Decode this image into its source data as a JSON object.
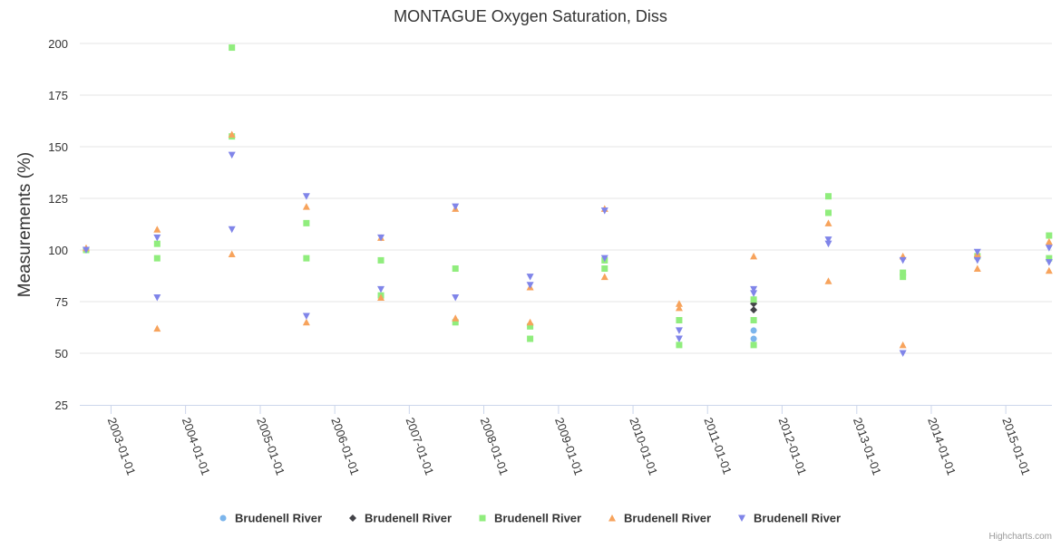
{
  "chart_data": {
    "type": "scatter",
    "title": "MONTAGUE Oxygen Saturation, Diss",
    "xlabel": "",
    "ylabel": "Measurements (%)",
    "x_axis_type": "datetime",
    "xlim": [
      "2002-08-01",
      "2015-08-15"
    ],
    "ylim": [
      25,
      200
    ],
    "y_ticks": [
      25,
      50,
      75,
      100,
      125,
      150,
      175,
      200
    ],
    "x_ticks": [
      "2003-01-01",
      "2004-01-01",
      "2005-01-01",
      "2006-01-01",
      "2007-01-01",
      "2008-01-01",
      "2009-01-01",
      "2010-01-01",
      "2011-01-01",
      "2012-01-01",
      "2013-01-01",
      "2014-01-01",
      "2015-01-01"
    ],
    "grid": "horizontal",
    "legend_position": "bottom-center",
    "series": [
      {
        "name": "Brudenell River",
        "color": "#7cb5ec",
        "marker": "circle",
        "points": [
          {
            "x": "2011-08-15",
            "y": 61
          },
          {
            "x": "2011-08-15",
            "y": 57
          }
        ]
      },
      {
        "name": "Brudenell River",
        "color": "#434348",
        "marker": "diamond",
        "points": [
          {
            "x": "2011-08-15",
            "y": 74
          },
          {
            "x": "2011-08-15",
            "y": 71
          }
        ]
      },
      {
        "name": "Brudenell River",
        "color": "#90ed7d",
        "marker": "square",
        "points": [
          {
            "x": "2002-09-01",
            "y": 100
          },
          {
            "x": "2003-08-15",
            "y": 103
          },
          {
            "x": "2003-08-15",
            "y": 96
          },
          {
            "x": "2004-08-15",
            "y": 198
          },
          {
            "x": "2004-08-15",
            "y": 155
          },
          {
            "x": "2005-08-15",
            "y": 113
          },
          {
            "x": "2005-08-15",
            "y": 96
          },
          {
            "x": "2006-08-15",
            "y": 95
          },
          {
            "x": "2006-08-15",
            "y": 78
          },
          {
            "x": "2007-08-15",
            "y": 91
          },
          {
            "x": "2007-08-15",
            "y": 65
          },
          {
            "x": "2008-08-15",
            "y": 63
          },
          {
            "x": "2008-08-15",
            "y": 57
          },
          {
            "x": "2009-08-15",
            "y": 95
          },
          {
            "x": "2009-08-15",
            "y": 91
          },
          {
            "x": "2010-08-15",
            "y": 66
          },
          {
            "x": "2010-08-15",
            "y": 54
          },
          {
            "x": "2011-08-15",
            "y": 76
          },
          {
            "x": "2011-08-15",
            "y": 66
          },
          {
            "x": "2011-08-15",
            "y": 54
          },
          {
            "x": "2012-08-15",
            "y": 126
          },
          {
            "x": "2012-08-15",
            "y": 118
          },
          {
            "x": "2013-08-15",
            "y": 89
          },
          {
            "x": "2013-08-15",
            "y": 87
          },
          {
            "x": "2014-08-15",
            "y": 97
          },
          {
            "x": "2015-08-01",
            "y": 107
          },
          {
            "x": "2015-08-01",
            "y": 96
          }
        ]
      },
      {
        "name": "Brudenell River",
        "color": "#f7a35c",
        "marker": "triangle",
        "points": [
          {
            "x": "2002-09-01",
            "y": 101
          },
          {
            "x": "2003-08-15",
            "y": 110
          },
          {
            "x": "2003-08-15",
            "y": 62
          },
          {
            "x": "2004-08-15",
            "y": 156
          },
          {
            "x": "2004-08-15",
            "y": 98
          },
          {
            "x": "2005-08-15",
            "y": 121
          },
          {
            "x": "2005-08-15",
            "y": 65
          },
          {
            "x": "2006-08-15",
            "y": 106
          },
          {
            "x": "2006-08-15",
            "y": 77
          },
          {
            "x": "2007-08-15",
            "y": 120
          },
          {
            "x": "2007-08-15",
            "y": 67
          },
          {
            "x": "2008-08-15",
            "y": 82
          },
          {
            "x": "2008-08-15",
            "y": 65
          },
          {
            "x": "2009-08-15",
            "y": 120
          },
          {
            "x": "2009-08-15",
            "y": 87
          },
          {
            "x": "2010-08-15",
            "y": 74
          },
          {
            "x": "2010-08-15",
            "y": 72
          },
          {
            "x": "2011-08-15",
            "y": 97
          },
          {
            "x": "2012-08-15",
            "y": 113
          },
          {
            "x": "2012-08-15",
            "y": 85
          },
          {
            "x": "2013-08-15",
            "y": 97
          },
          {
            "x": "2013-08-15",
            "y": 54
          },
          {
            "x": "2014-08-15",
            "y": 98
          },
          {
            "x": "2014-08-15",
            "y": 91
          },
          {
            "x": "2015-08-01",
            "y": 104
          },
          {
            "x": "2015-08-01",
            "y": 90
          }
        ]
      },
      {
        "name": "Brudenell River",
        "color": "#8085e9",
        "marker": "triangle-down",
        "points": [
          {
            "x": "2002-09-01",
            "y": 100
          },
          {
            "x": "2003-08-15",
            "y": 106
          },
          {
            "x": "2003-08-15",
            "y": 77
          },
          {
            "x": "2004-08-15",
            "y": 146
          },
          {
            "x": "2004-08-15",
            "y": 110
          },
          {
            "x": "2005-08-15",
            "y": 126
          },
          {
            "x": "2005-08-15",
            "y": 68
          },
          {
            "x": "2006-08-15",
            "y": 106
          },
          {
            "x": "2006-08-15",
            "y": 81
          },
          {
            "x": "2007-08-15",
            "y": 121
          },
          {
            "x": "2007-08-15",
            "y": 77
          },
          {
            "x": "2008-08-15",
            "y": 87
          },
          {
            "x": "2008-08-15",
            "y": 83
          },
          {
            "x": "2009-08-15",
            "y": 119
          },
          {
            "x": "2009-08-15",
            "y": 96
          },
          {
            "x": "2010-08-15",
            "y": 61
          },
          {
            "x": "2010-08-15",
            "y": 57
          },
          {
            "x": "2011-08-15",
            "y": 81
          },
          {
            "x": "2011-08-15",
            "y": 79
          },
          {
            "x": "2012-08-15",
            "y": 105
          },
          {
            "x": "2012-08-15",
            "y": 103
          },
          {
            "x": "2013-08-15",
            "y": 95
          },
          {
            "x": "2013-08-15",
            "y": 50
          },
          {
            "x": "2014-08-15",
            "y": 99
          },
          {
            "x": "2014-08-15",
            "y": 95
          },
          {
            "x": "2015-08-01",
            "y": 101
          },
          {
            "x": "2015-08-01",
            "y": 94
          }
        ]
      }
    ],
    "credit": "Highcharts.com"
  }
}
